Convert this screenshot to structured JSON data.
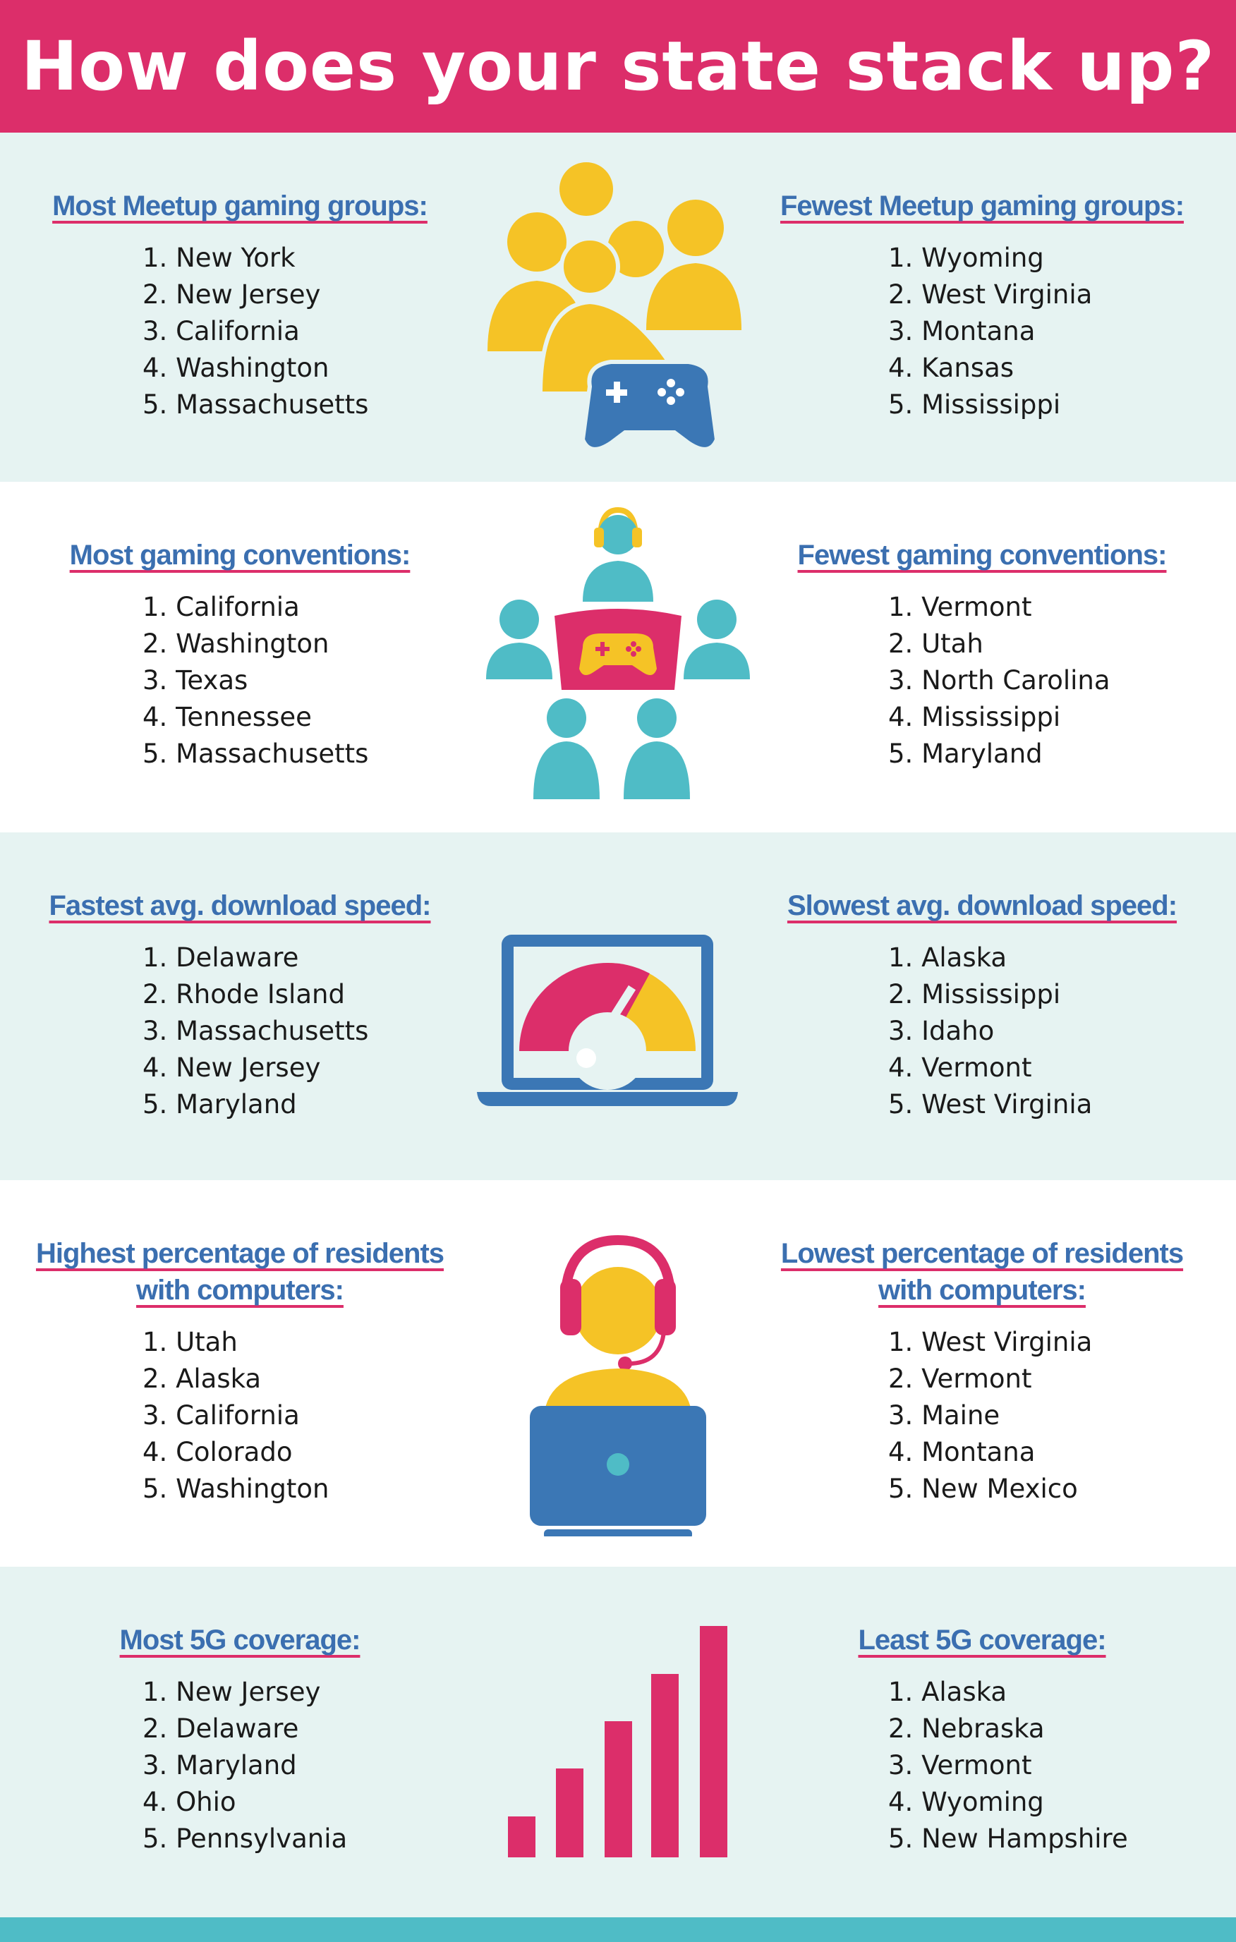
{
  "title": "How does your state stack up?",
  "sections": [
    {
      "left": {
        "heading": "Most Meetup gaming groups:",
        "items": [
          "1. New York",
          "2. New Jersey",
          "3. California",
          "4. Washington",
          "5. Massachusetts"
        ]
      },
      "right": {
        "heading": "Fewest Meetup gaming groups:",
        "items": [
          "1. Wyoming",
          "2. West Virginia",
          "3. Montana",
          "4. Kansas",
          "5. Mississippi"
        ]
      }
    },
    {
      "left": {
        "heading": "Most gaming conventions:",
        "items": [
          "1. California",
          "2. Washington",
          "3. Texas",
          "4. Tennessee",
          "5. Massachusetts"
        ]
      },
      "right": {
        "heading": "Fewest gaming conventions:",
        "items": [
          "1. Vermont",
          "2. Utah",
          "3. North Carolina",
          "4. Mississippi",
          "5. Maryland"
        ]
      }
    },
    {
      "left": {
        "heading": "Fastest avg. download speed:",
        "items": [
          "1. Delaware",
          "2. Rhode Island",
          "3. Massachusetts",
          "4. New Jersey",
          "5. Maryland"
        ]
      },
      "right": {
        "heading": "Slowest avg. download speed:",
        "items": [
          "1. Alaska",
          "2. Mississippi",
          "3. Idaho",
          "4. Vermont",
          "5. West Virginia"
        ]
      }
    },
    {
      "left": {
        "heading": "Highest percentage of residents with computers:",
        "items": [
          "1. Utah",
          "2. Alaska",
          "3. California",
          "4. Colorado",
          "5. Washington"
        ]
      },
      "right": {
        "heading": "Lowest percentage of residents with computers:",
        "items": [
          "1. West Virginia",
          "2. Vermont",
          "3. Maine",
          "4. Montana",
          "5. New Mexico"
        ]
      }
    },
    {
      "left": {
        "heading": "Most 5G coverage:",
        "items": [
          "1. New Jersey",
          "2. Delaware",
          "3. Maryland",
          "4. Ohio",
          "5. Pennsylvania"
        ]
      },
      "right": {
        "heading": "Least 5G coverage:",
        "items": [
          "1. Alaska",
          "2. Nebraska",
          "3. Vermont",
          "4. Wyoming",
          "5. New Hampshire"
        ]
      }
    }
  ]
}
